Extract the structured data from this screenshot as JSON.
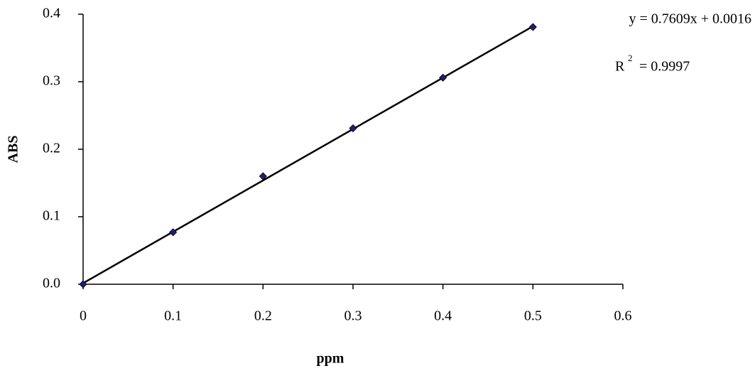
{
  "chart_data": {
    "type": "scatter",
    "x_label": "ppm",
    "y_label": "ABS",
    "x": [
      0,
      0.1,
      0.2,
      0.3,
      0.4,
      0.5
    ],
    "series": [
      {
        "color": "#1f1f7a",
        "values": [
          0,
          0.077,
          0.16,
          0.231,
          0.306,
          0.381
        ]
      }
    ],
    "xlim": [
      0,
      0.6
    ],
    "xticks": [
      0,
      0.1,
      0.2,
      0.3,
      0.4,
      0.5,
      0.6
    ],
    "ylim": [
      0,
      0.4
    ],
    "yticks": [
      {
        "value": 0,
        "label": "0.0"
      },
      0.1,
      0.2,
      0.3,
      0.4
    ],
    "trendline": {
      "slope": 0.7609,
      "intercept": 0.0016,
      "color": "#000000",
      "label": "y = 0.7609x + 0.0016"
    },
    "r_squared": {
      "symbol": "R",
      "exponent": "2",
      "text": "= 0.9997"
    }
  }
}
